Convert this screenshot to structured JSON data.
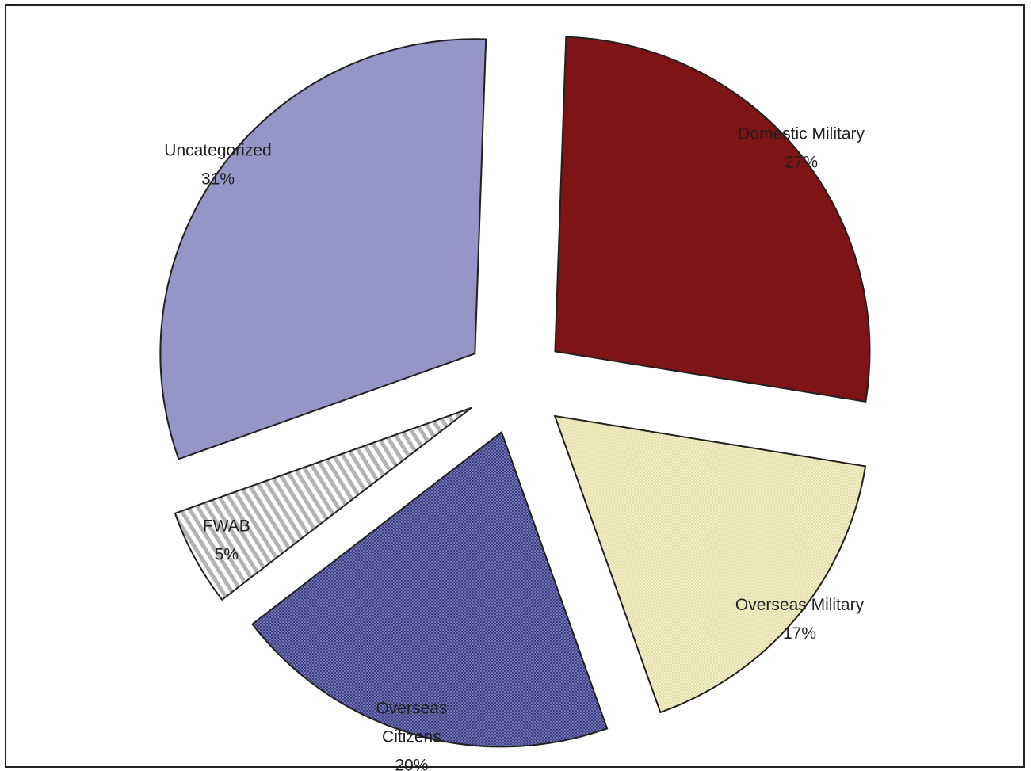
{
  "chart_data": {
    "type": "pie",
    "title": "",
    "legend": "none",
    "start_angle_deg": 2,
    "direction": "clockwise",
    "slices": [
      {
        "label_lines": [
          "Domestic Military"
        ],
        "value": 27,
        "value_label": "27%",
        "color": "#7e1416",
        "fill_pattern": "solid",
        "pattern_color": "#7e1416"
      },
      {
        "label_lines": [
          "Overseas Military"
        ],
        "value": 17,
        "value_label": "17%",
        "color": "#f3efc6",
        "fill_pattern": "dots",
        "pattern_color": "#d8d199"
      },
      {
        "label_lines": [
          "Overseas",
          "Citizens"
        ],
        "value": 20,
        "value_label": "20%",
        "color": "#3c3f85",
        "fill_pattern": "dots",
        "pattern_color": "#9aa0d2"
      },
      {
        "label_lines": [
          "FWAB"
        ],
        "value": 5,
        "value_label": "5%",
        "color": "#ffffff",
        "fill_pattern": "diagonal-stripes",
        "pattern_color": "#b3b3b3"
      },
      {
        "label_lines": [
          "Uncategorized"
        ],
        "value": 31,
        "value_label": "31%",
        "color": "#9595c8",
        "fill_pattern": "solid",
        "pattern_color": "#9595c8"
      }
    ]
  }
}
